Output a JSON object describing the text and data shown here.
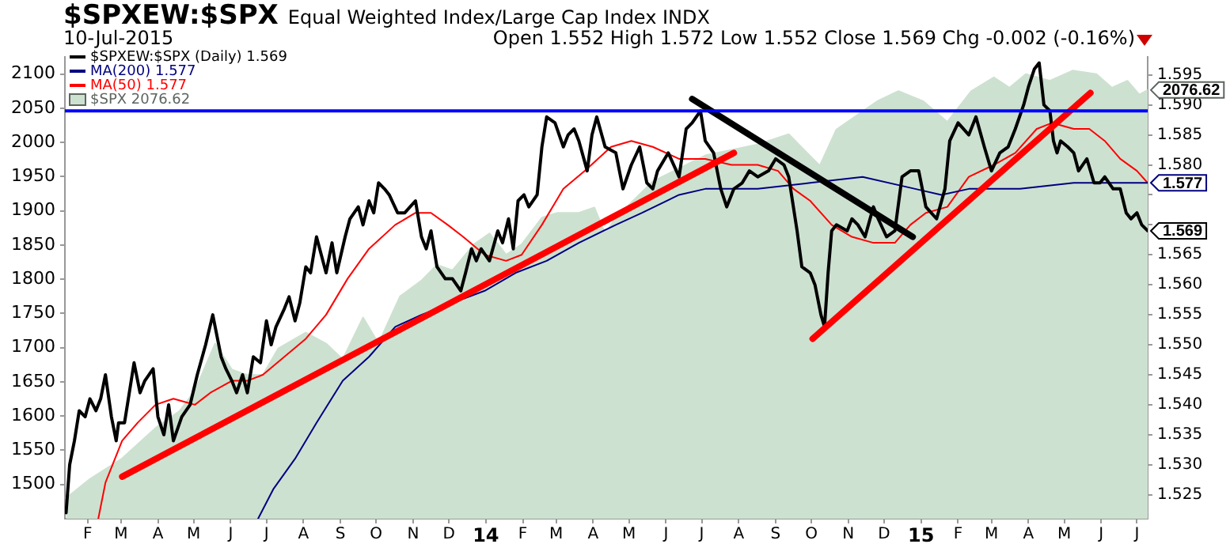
{
  "chart_data": {
    "type": "line",
    "title": "$SPXEW:$SPX",
    "subtitle": "Equal Weighted Index/Large Cap Index INDX",
    "annotations": [
      "10-Jul-2015",
      "Open 1.552 High 1.572 Low 1.552 Close 1.569 Chg -0.002 (-0.16%)"
    ],
    "legend": "top left",
    "marker": "none",
    "xlim": [
      "2013-01-13",
      "2015-07-10"
    ],
    "xticks": [
      {
        "value": "2013-02",
        "label": "F"
      },
      {
        "value": "2013-03",
        "label": "M"
      },
      {
        "value": "2013-04",
        "label": "A"
      },
      {
        "value": "2013-05",
        "label": "M"
      },
      {
        "value": "2013-06",
        "label": "J"
      },
      {
        "value": "2013-07",
        "label": "J"
      },
      {
        "value": "2013-08",
        "label": "A"
      },
      {
        "value": "2013-09",
        "label": "S"
      },
      {
        "value": "2013-10",
        "label": "O"
      },
      {
        "value": "2013-11",
        "label": "N"
      },
      {
        "value": "2013-12",
        "label": "D"
      },
      {
        "value": "2014-01",
        "label": "14"
      },
      {
        "value": "2014-02",
        "label": "F"
      },
      {
        "value": "2014-03",
        "label": "M"
      },
      {
        "value": "2014-04",
        "label": "A"
      },
      {
        "value": "2014-05",
        "label": "M"
      },
      {
        "value": "2014-06",
        "label": "J"
      },
      {
        "value": "2014-07",
        "label": "J"
      },
      {
        "value": "2014-08",
        "label": "A"
      },
      {
        "value": "2014-09",
        "label": "S"
      },
      {
        "value": "2014-10",
        "label": "O"
      },
      {
        "value": "2014-11",
        "label": "N"
      },
      {
        "value": "2014-12",
        "label": "D"
      },
      {
        "value": "2015-01",
        "label": "15"
      },
      {
        "value": "2015-02",
        "label": "F"
      },
      {
        "value": "2015-03",
        "label": "M"
      },
      {
        "value": "2015-04",
        "label": "A"
      },
      {
        "value": "2015-05",
        "label": "M"
      },
      {
        "value": "2015-06",
        "label": "J"
      },
      {
        "value": "2015-07",
        "label": "J"
      }
    ],
    "ylim": [
      1450,
      2125
    ],
    "yticks": [
      1500,
      1550,
      1600,
      1650,
      1700,
      1750,
      1800,
      1850,
      1900,
      1950,
      2000,
      2050,
      2100
    ],
    "y2lim": [
      1.521,
      1.598
    ],
    "y2ticks": [
      1.525,
      {
        "value": 1.53,
        "label": "1.530"
      },
      1.535,
      {
        "value": 1.54,
        "label": "1.540"
      },
      1.545,
      {
        "value": 1.55,
        "label": "1.550"
      },
      1.555,
      {
        "value": 1.56,
        "label": "1.560"
      },
      1.565,
      {
        "value": 1.57,
        "label": null
      },
      {
        "value": 1.575,
        "label": null
      },
      {
        "value": 1.58,
        "label": "1.580"
      },
      1.585,
      {
        "value": 1.59,
        "label": "1.590"
      },
      1.595
    ],
    "ref_lines": [
      {
        "axis": "y2",
        "value": 1.589,
        "color": "#0000ff"
      }
    ],
    "series": [
      {
        "name": "$SPXEW:$SPX (Daily) 1.569",
        "axis": "y2",
        "color": "#000000",
        "x": [
          "2013-01-14",
          "2013-01-17",
          "2013-01-21",
          "2013-01-25",
          "2013-01-30",
          "2013-02-03",
          "2013-02-08",
          "2013-02-12",
          "2013-02-16",
          "2013-02-21",
          "2013-02-25",
          "2013-02-27",
          "2013-03-04",
          "2013-03-08",
          "2013-03-12",
          "2013-03-17",
          "2013-03-21",
          "2013-03-28",
          "2013-04-01",
          "2013-04-06",
          "2013-04-10",
          "2013-04-14",
          "2013-04-21",
          "2013-04-28",
          "2013-05-04",
          "2013-05-11",
          "2013-05-17",
          "2013-05-19",
          "2013-05-24",
          "2013-05-28",
          "2013-06-02",
          "2013-06-06",
          "2013-06-11",
          "2013-06-15",
          "2013-06-20",
          "2013-06-26",
          "2013-07-01",
          "2013-07-05",
          "2013-07-09",
          "2013-07-16",
          "2013-07-20",
          "2013-07-25",
          "2013-07-29",
          "2013-08-03",
          "2013-08-07",
          "2013-08-12",
          "2013-08-16",
          "2013-08-20",
          "2013-08-25",
          "2013-08-29",
          "2013-09-05",
          "2013-09-09",
          "2013-09-16",
          "2013-09-20",
          "2013-09-25",
          "2013-09-29",
          "2013-10-03",
          "2013-10-08",
          "2013-10-12",
          "2013-10-19",
          "2013-10-25",
          "2013-11-03",
          "2013-11-08",
          "2013-11-12",
          "2013-11-16",
          "2013-11-21",
          "2013-11-28",
          "2013-12-04",
          "2013-12-11",
          "2013-12-15",
          "2013-12-20",
          "2013-12-24",
          "2013-12-28",
          "2014-01-04",
          "2014-01-11",
          "2014-01-15",
          "2014-01-20",
          "2014-01-24",
          "2014-01-28",
          "2014-02-02",
          "2014-02-06",
          "2014-02-13",
          "2014-02-17",
          "2014-02-21",
          "2014-02-28",
          "2014-03-07",
          "2014-03-11",
          "2014-03-16",
          "2014-03-20",
          "2014-03-27",
          "2014-03-31",
          "2014-04-04",
          "2014-04-11",
          "2014-04-20",
          "2014-04-26",
          "2014-05-03",
          "2014-05-10",
          "2014-05-16",
          "2014-05-21",
          "2014-05-25",
          "2014-06-03",
          "2014-06-12",
          "2014-06-18",
          "2014-06-23",
          "2014-06-30",
          "2014-07-04",
          "2014-07-11",
          "2014-07-17",
          "2014-07-22",
          "2014-07-28",
          "2014-08-04",
          "2014-08-10",
          "2014-08-17",
          "2014-08-26",
          "2014-09-01",
          "2014-09-08",
          "2014-09-12",
          "2014-09-19",
          "2014-09-23",
          "2014-09-30",
          "2014-10-04",
          "2014-10-09",
          "2014-10-12",
          "2014-10-15",
          "2014-10-18",
          "2014-10-22",
          "2014-10-31",
          "2014-11-04",
          "2014-11-09",
          "2014-11-15",
          "2014-11-22",
          "2014-11-26",
          "2014-12-03",
          "2014-12-10",
          "2014-12-16",
          "2014-12-23",
          "2014-12-30",
          "2015-01-05",
          "2015-01-14",
          "2015-01-21",
          "2015-01-25",
          "2015-02-01",
          "2015-02-10",
          "2015-02-16",
          "2015-02-23",
          "2015-03-01",
          "2015-03-08",
          "2015-03-15",
          "2015-03-21",
          "2015-03-28",
          "2015-04-01",
          "2015-04-06",
          "2015-04-10",
          "2015-04-14",
          "2015-04-19",
          "2015-04-22",
          "2015-04-25",
          "2015-04-28",
          "2015-05-04",
          "2015-05-09",
          "2015-05-13",
          "2015-05-20",
          "2015-05-26",
          "2015-05-31",
          "2015-06-04",
          "2015-06-11",
          "2015-06-17",
          "2015-06-22",
          "2015-06-26",
          "2015-07-01",
          "2015-07-05",
          "2015-07-10"
        ],
        "values": [
          1.522,
          1.53,
          1.534,
          1.539,
          1.538,
          1.541,
          1.539,
          1.541,
          1.545,
          1.538,
          1.534,
          1.537,
          1.537,
          1.542,
          1.547,
          1.542,
          1.544,
          1.546,
          1.538,
          1.535,
          1.54,
          1.534,
          1.538,
          1.54,
          1.545,
          1.55,
          1.555,
          1.553,
          1.548,
          1.546,
          1.544,
          1.542,
          1.545,
          1.542,
          1.548,
          1.547,
          1.554,
          1.55,
          1.553,
          1.556,
          1.558,
          1.554,
          1.557,
          1.563,
          1.562,
          1.568,
          1.565,
          1.562,
          1.567,
          1.562,
          1.568,
          1.571,
          1.573,
          1.57,
          1.574,
          1.572,
          1.577,
          1.576,
          1.575,
          1.572,
          1.572,
          1.574,
          1.568,
          1.566,
          1.569,
          1.563,
          1.561,
          1.561,
          1.559,
          1.562,
          1.566,
          1.564,
          1.566,
          1.564,
          1.569,
          1.567,
          1.571,
          1.566,
          1.574,
          1.575,
          1.573,
          1.575,
          1.583,
          1.588,
          1.587,
          1.583,
          1.585,
          1.586,
          1.584,
          1.579,
          1.585,
          1.588,
          1.583,
          1.582,
          1.576,
          1.58,
          1.583,
          1.577,
          1.576,
          1.579,
          1.582,
          1.578,
          1.586,
          1.587,
          1.589,
          1.584,
          1.582,
          1.576,
          1.573,
          1.576,
          1.577,
          1.579,
          1.578,
          1.579,
          1.581,
          1.58,
          1.578,
          1.569,
          1.563,
          1.562,
          1.56,
          1.555,
          1.553,
          1.562,
          1.569,
          1.57,
          1.569,
          1.571,
          1.57,
          1.568,
          1.573,
          1.571,
          1.568,
          1.569,
          1.578,
          1.579,
          1.579,
          1.573,
          1.571,
          1.576,
          1.584,
          1.587,
          1.585,
          1.588,
          1.583,
          1.579,
          1.582,
          1.583,
          1.586,
          1.59,
          1.593,
          1.596,
          1.597,
          1.59,
          1.589,
          1.584,
          1.582,
          1.584,
          1.583,
          1.582,
          1.579,
          1.581,
          1.577,
          1.577,
          1.578,
          1.576,
          1.576,
          1.572,
          1.571,
          1.572,
          1.57,
          1.569
        ],
        "value_labels": [
          null,
          null,
          null,
          null,
          null,
          null,
          null,
          null,
          null,
          null,
          null,
          null,
          null,
          null,
          null,
          null,
          null,
          null,
          null,
          null,
          null,
          null,
          null,
          null,
          null,
          null,
          null,
          null,
          null,
          null,
          null,
          null,
          null,
          null,
          null,
          null,
          null,
          null,
          null,
          null,
          null,
          null,
          null,
          null,
          null,
          null,
          null,
          null,
          null,
          null,
          null,
          null,
          null,
          null,
          null,
          null,
          null,
          null,
          null,
          null,
          null,
          null,
          null,
          null,
          null,
          null,
          null,
          null,
          null,
          null,
          null,
          null,
          null,
          null,
          null,
          null,
          null,
          null,
          null,
          null,
          null,
          null,
          null,
          null,
          null,
          null,
          null,
          null,
          null,
          null,
          null,
          null,
          null,
          null,
          null,
          null,
          null,
          null,
          null,
          null,
          null,
          null,
          null,
          null,
          null,
          null,
          null,
          null,
          null,
          null,
          null,
          null,
          null,
          null,
          null,
          null,
          null,
          null,
          null,
          null,
          null,
          null,
          null,
          null,
          null,
          null,
          null,
          null,
          null,
          null,
          null,
          null,
          null,
          null,
          null,
          null,
          null,
          null,
          null,
          null,
          null,
          null,
          null,
          null,
          null,
          null,
          null,
          null,
          null,
          null,
          null,
          null,
          null,
          null,
          null,
          null,
          null,
          null,
          null,
          null,
          null,
          null,
          null,
          null,
          null,
          null,
          null,
          null,
          null,
          null,
          null,
          "1.569"
        ]
      },
      {
        "name": "MA(200) 1.577",
        "axis": "y2",
        "color": "#000080",
        "x": [
          "2013-06-24",
          "2013-07-07",
          "2013-07-25",
          "2013-08-12",
          "2013-09-03",
          "2013-09-25",
          "2013-10-17",
          "2013-11-08",
          "2013-12-04",
          "2013-12-31",
          "2014-01-26",
          "2014-02-21",
          "2014-03-20",
          "2014-04-20",
          "2014-05-12",
          "2014-06-12",
          "2014-07-04",
          "2014-08-17",
          "2014-09-30",
          "2014-11-13",
          "2014-12-27",
          "2015-01-18",
          "2015-02-10",
          "2015-03-25",
          "2015-05-09",
          "2015-06-22",
          "2015-07-10"
        ],
        "values": [
          1.521,
          1.526,
          1.531,
          1.537,
          1.544,
          1.548,
          1.553,
          1.555,
          1.557,
          1.559,
          1.562,
          1.564,
          1.567,
          1.57,
          1.572,
          1.575,
          1.576,
          1.576,
          1.577,
          1.578,
          1.576,
          1.575,
          1.576,
          1.576,
          1.577,
          1.577,
          1.577
        ],
        "value_labels": [
          null,
          null,
          null,
          null,
          null,
          null,
          null,
          null,
          null,
          null,
          null,
          null,
          null,
          null,
          null,
          null,
          null,
          null,
          null,
          null,
          null,
          null,
          null,
          null,
          null,
          null,
          "1.577"
        ]
      },
      {
        "name": "MA(50) 1.577",
        "axis": "y2",
        "color": "#ff0000",
        "x": [
          "2013-02-10",
          "2013-02-16",
          "2013-03-02",
          "2013-03-15",
          "2013-03-30",
          "2013-04-14",
          "2013-05-02",
          "2013-05-15",
          "2013-06-02",
          "2013-06-15",
          "2013-06-28",
          "2013-07-16",
          "2013-08-03",
          "2013-08-20",
          "2013-09-07",
          "2013-09-25",
          "2013-10-17",
          "2013-11-03",
          "2013-11-16",
          "2013-11-30",
          "2013-12-13",
          "2013-12-31",
          "2014-01-18",
          "2014-01-31",
          "2014-02-17",
          "2014-03-07",
          "2014-03-25",
          "2014-04-16",
          "2014-05-03",
          "2014-05-21",
          "2014-06-12",
          "2014-07-04",
          "2014-07-26",
          "2014-08-17",
          "2014-09-03",
          "2014-09-16",
          "2014-09-30",
          "2014-10-18",
          "2014-11-04",
          "2014-11-22",
          "2014-12-10",
          "2014-12-23",
          "2015-01-05",
          "2015-01-23",
          "2015-02-10",
          "2015-03-03",
          "2015-03-21",
          "2015-04-08",
          "2015-04-21",
          "2015-05-09",
          "2015-05-22",
          "2015-06-04",
          "2015-06-17",
          "2015-07-01",
          "2015-07-10"
        ],
        "values": [
          1.521,
          1.527,
          1.534,
          1.537,
          1.54,
          1.541,
          1.54,
          1.542,
          1.544,
          1.544,
          1.545,
          1.548,
          1.551,
          1.555,
          1.561,
          1.566,
          1.57,
          1.572,
          1.572,
          1.57,
          1.568,
          1.565,
          1.564,
          1.565,
          1.57,
          1.576,
          1.579,
          1.583,
          1.584,
          1.583,
          1.581,
          1.581,
          1.58,
          1.58,
          1.579,
          1.576,
          1.574,
          1.57,
          1.568,
          1.567,
          1.567,
          1.57,
          1.572,
          1.573,
          1.578,
          1.58,
          1.582,
          1.586,
          1.587,
          1.586,
          1.586,
          1.584,
          1.581,
          1.579,
          1.577
        ]
      },
      {
        "name": "$SPX 2076.62",
        "type": "area",
        "color": "#cde1d0",
        "x": [
          "2013-01-14",
          "2013-02-03",
          "2013-03-02",
          "2013-03-31",
          "2013-04-19",
          "2013-05-02",
          "2013-05-19",
          "2013-06-02",
          "2013-06-15",
          "2013-06-28",
          "2013-07-11",
          "2013-08-03",
          "2013-08-20",
          "2013-09-03",
          "2013-09-20",
          "2013-10-03",
          "2013-10-21",
          "2013-11-08",
          "2013-11-21",
          "2013-12-04",
          "2013-12-22",
          "2014-01-04",
          "2014-01-18",
          "2014-01-31",
          "2014-02-17",
          "2014-03-02",
          "2014-03-20",
          "2014-04-02",
          "2014-04-11",
          "2014-04-20",
          "2014-05-21",
          "2014-07-04",
          "2014-08-17",
          "2014-09-12",
          "2014-10-08",
          "2014-10-22",
          "2014-11-25",
          "2014-12-13",
          "2015-01-03",
          "2015-01-23",
          "2015-02-12",
          "2015-03-03",
          "2015-03-16",
          "2015-03-30",
          "2015-04-19",
          "2015-05-08",
          "2015-05-28",
          "2015-06-10",
          "2015-06-23",
          "2015-07-03",
          "2015-07-10"
        ],
        "values": [
          1480,
          1508,
          1538,
          1584,
          1607,
          1637,
          1706,
          1668,
          1660,
          1660,
          1699,
          1722,
          1706,
          1683,
          1744,
          1706,
          1775,
          1798,
          1821,
          1813,
          1851,
          1867,
          1836,
          1851,
          1890,
          1897,
          1897,
          1905,
          1867,
          1890,
          1943,
          1981,
          1997,
          2012,
          1966,
          2019,
          2060,
          2075,
          2060,
          2030,
          2075,
          2095,
          2080,
          2100,
          2090,
          2105,
          2100,
          2080,
          2090,
          2070,
          2076.62
        ],
        "value_labels": [
          null,
          null,
          null,
          null,
          null,
          null,
          null,
          null,
          null,
          null,
          null,
          null,
          null,
          null,
          null,
          null,
          null,
          null,
          null,
          null,
          null,
          null,
          null,
          null,
          null,
          null,
          null,
          null,
          null,
          null,
          null,
          null,
          null,
          null,
          null,
          null,
          null,
          null,
          null,
          null,
          null,
          null,
          null,
          null,
          null,
          null,
          null,
          null,
          null,
          null,
          "2076.62"
        ]
      },
      {
        "type": "line",
        "axis": "y2",
        "color": "#ff0000",
        "x": [
          "2013-03-02",
          "2014-07-28"
        ],
        "values": [
          1.528,
          1.582
        ]
      },
      {
        "type": "line",
        "axis": "y2",
        "color": "#000000",
        "x": [
          "2014-06-23",
          "2014-12-25"
        ],
        "values": [
          1.591,
          1.568
        ]
      },
      {
        "type": "line",
        "axis": "y2",
        "color": "#ff0000",
        "x": [
          "2014-10-02",
          "2015-05-23"
        ],
        "values": [
          1.551,
          1.592
        ]
      }
    ]
  }
}
